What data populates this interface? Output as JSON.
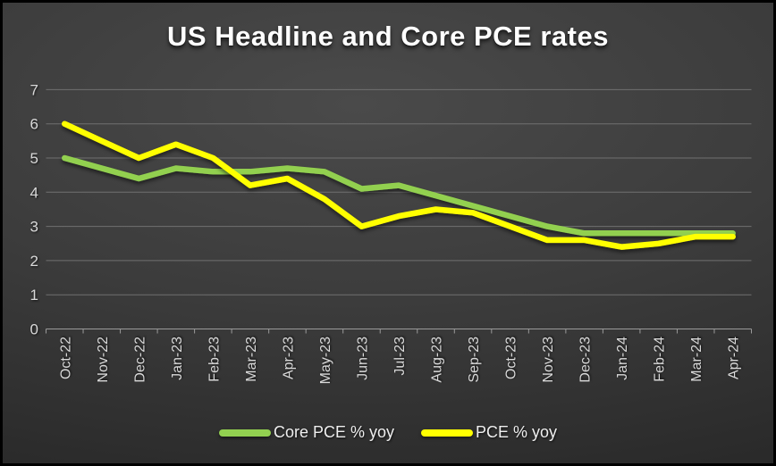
{
  "title": "US Headline and Core PCE rates",
  "colors": {
    "background_center": "#4a4a4a",
    "background_edge": "#262626",
    "gridline": "#707070",
    "axis_line": "#9a9a9a",
    "axis_label": "#d9d9d9",
    "title_text": "#ffffff",
    "core_pce_line": "#92d050",
    "pce_line": "#ffff00"
  },
  "chart_data": {
    "type": "line",
    "title": "US Headline and Core PCE rates",
    "categories": [
      "Oct-22",
      "Nov-22",
      "Dec-22",
      "Jan-23",
      "Feb-23",
      "Mar-23",
      "Apr-23",
      "May-23",
      "Jun-23",
      "Jul-23",
      "Aug-23",
      "Sep-23",
      "Oct-23",
      "Nov-23",
      "Dec-23",
      "Jan-24",
      "Feb-24",
      "Mar-24",
      "Apr-24"
    ],
    "series": [
      {
        "name": "Core PCE % yoy",
        "color": "#92d050",
        "values": [
          5.0,
          4.7,
          4.4,
          4.7,
          4.6,
          4.6,
          4.7,
          4.6,
          4.1,
          4.2,
          3.9,
          3.6,
          3.3,
          3.0,
          2.8,
          2.8,
          2.8,
          2.8,
          2.8
        ]
      },
      {
        "name": "PCE % yoy",
        "color": "#ffff00",
        "values": [
          6.0,
          5.5,
          5.0,
          5.4,
          5.0,
          4.2,
          4.4,
          3.8,
          3.0,
          3.3,
          3.5,
          3.4,
          3.0,
          2.6,
          2.6,
          2.4,
          2.5,
          2.7,
          2.7
        ]
      }
    ],
    "xlabel": "",
    "ylabel": "",
    "ylim": [
      0,
      7
    ],
    "y_ticks": [
      0,
      1,
      2,
      3,
      4,
      5,
      6,
      7
    ],
    "grid": "horizontal",
    "legend_position": "bottom"
  }
}
